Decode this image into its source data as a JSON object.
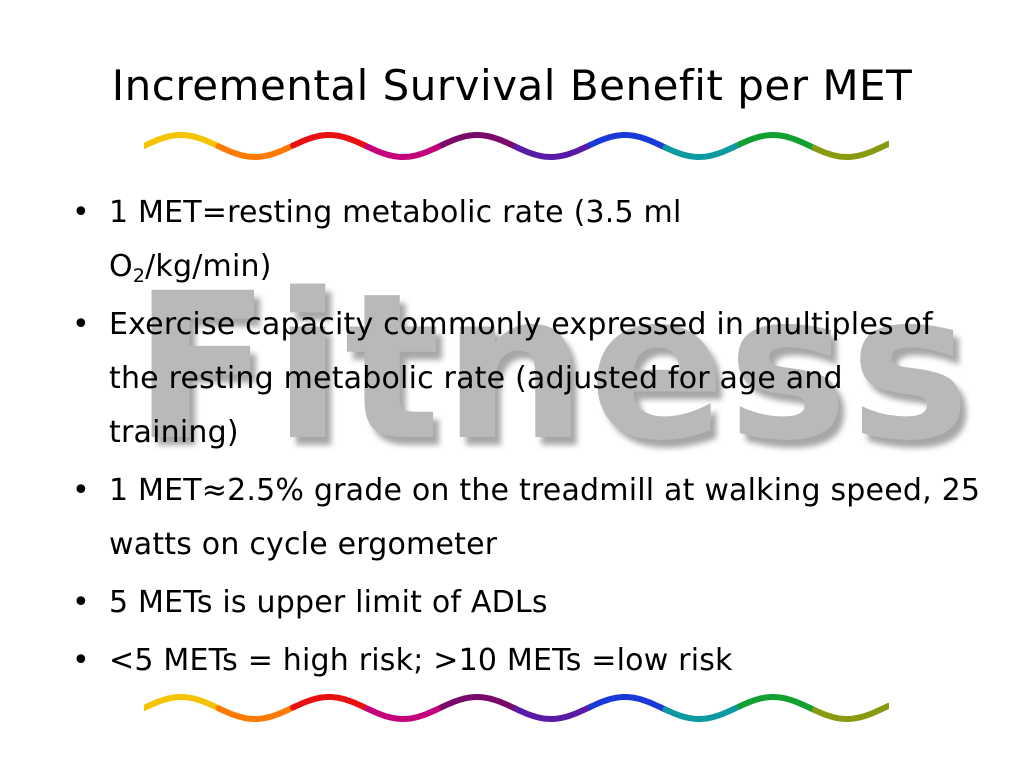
{
  "slide": {
    "title": "Incremental Survival Benefit per MET",
    "watermark": "Fitness",
    "bullet_symbol": "•",
    "bullets": [
      {
        "text": "1 MET=resting metabolic rate (3.5 ml",
        "text2a": "O",
        "sub": "2",
        "text2b": "/kg/min)"
      },
      {
        "text": "Exercise capacity commonly expressed in multiples of the resting metabolic rate (adjusted for age and training)"
      },
      {
        "text": "1 MET≈2.5% grade on the treadmill at walking speed, 25 watts on cycle ergometer"
      },
      {
        "text": "5 METs is upper limit of ADLs"
      },
      {
        "text": "<5 METs = high risk; >10 METs =low risk"
      }
    ]
  },
  "wave_colors": [
    "#f5c400",
    "#ff7a00",
    "#e81010",
    "#c4007a",
    "#7a0a6a",
    "#5a1aa8",
    "#1a3ad8",
    "#0a9aa0",
    "#12a030",
    "#8a9a10"
  ]
}
